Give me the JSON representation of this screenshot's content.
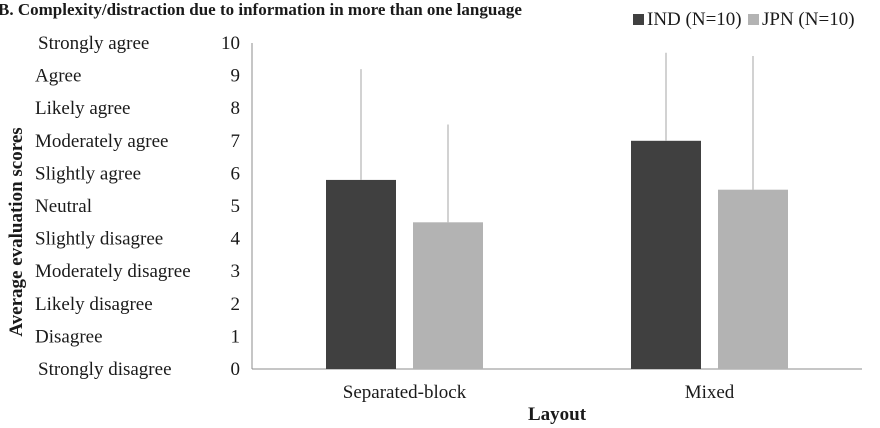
{
  "chart_data": {
    "type": "bar",
    "title": "B. Complexity/distraction due to information in more than one language",
    "xlabel": "Layout",
    "ylabel": "Average evaluation scores",
    "ylim": [
      0,
      10
    ],
    "yticks": [
      0,
      1,
      2,
      3,
      4,
      5,
      6,
      7,
      8,
      9,
      10
    ],
    "ytick_labels": [
      "Strongly disagree",
      "Disagree",
      "Likely disagree",
      "Moderately disagree",
      "Slightly disagree",
      "Neutral",
      "Slightly agree",
      "Moderately agree",
      "Likely agree",
      "Agree",
      "Strongly agree"
    ],
    "categories": [
      "Separated-block",
      "Mixed"
    ],
    "series": [
      {
        "name": "IND (N=10)",
        "color": "#404040",
        "values": [
          5.8,
          7.0
        ],
        "error": [
          3.4,
          2.7
        ]
      },
      {
        "name": "JPN (N=10)",
        "color": "#b3b3b3",
        "values": [
          4.5,
          5.5
        ],
        "error": [
          3.0,
          4.1
        ]
      }
    ],
    "grid": false,
    "legend": "top-right",
    "error_bars": true
  }
}
